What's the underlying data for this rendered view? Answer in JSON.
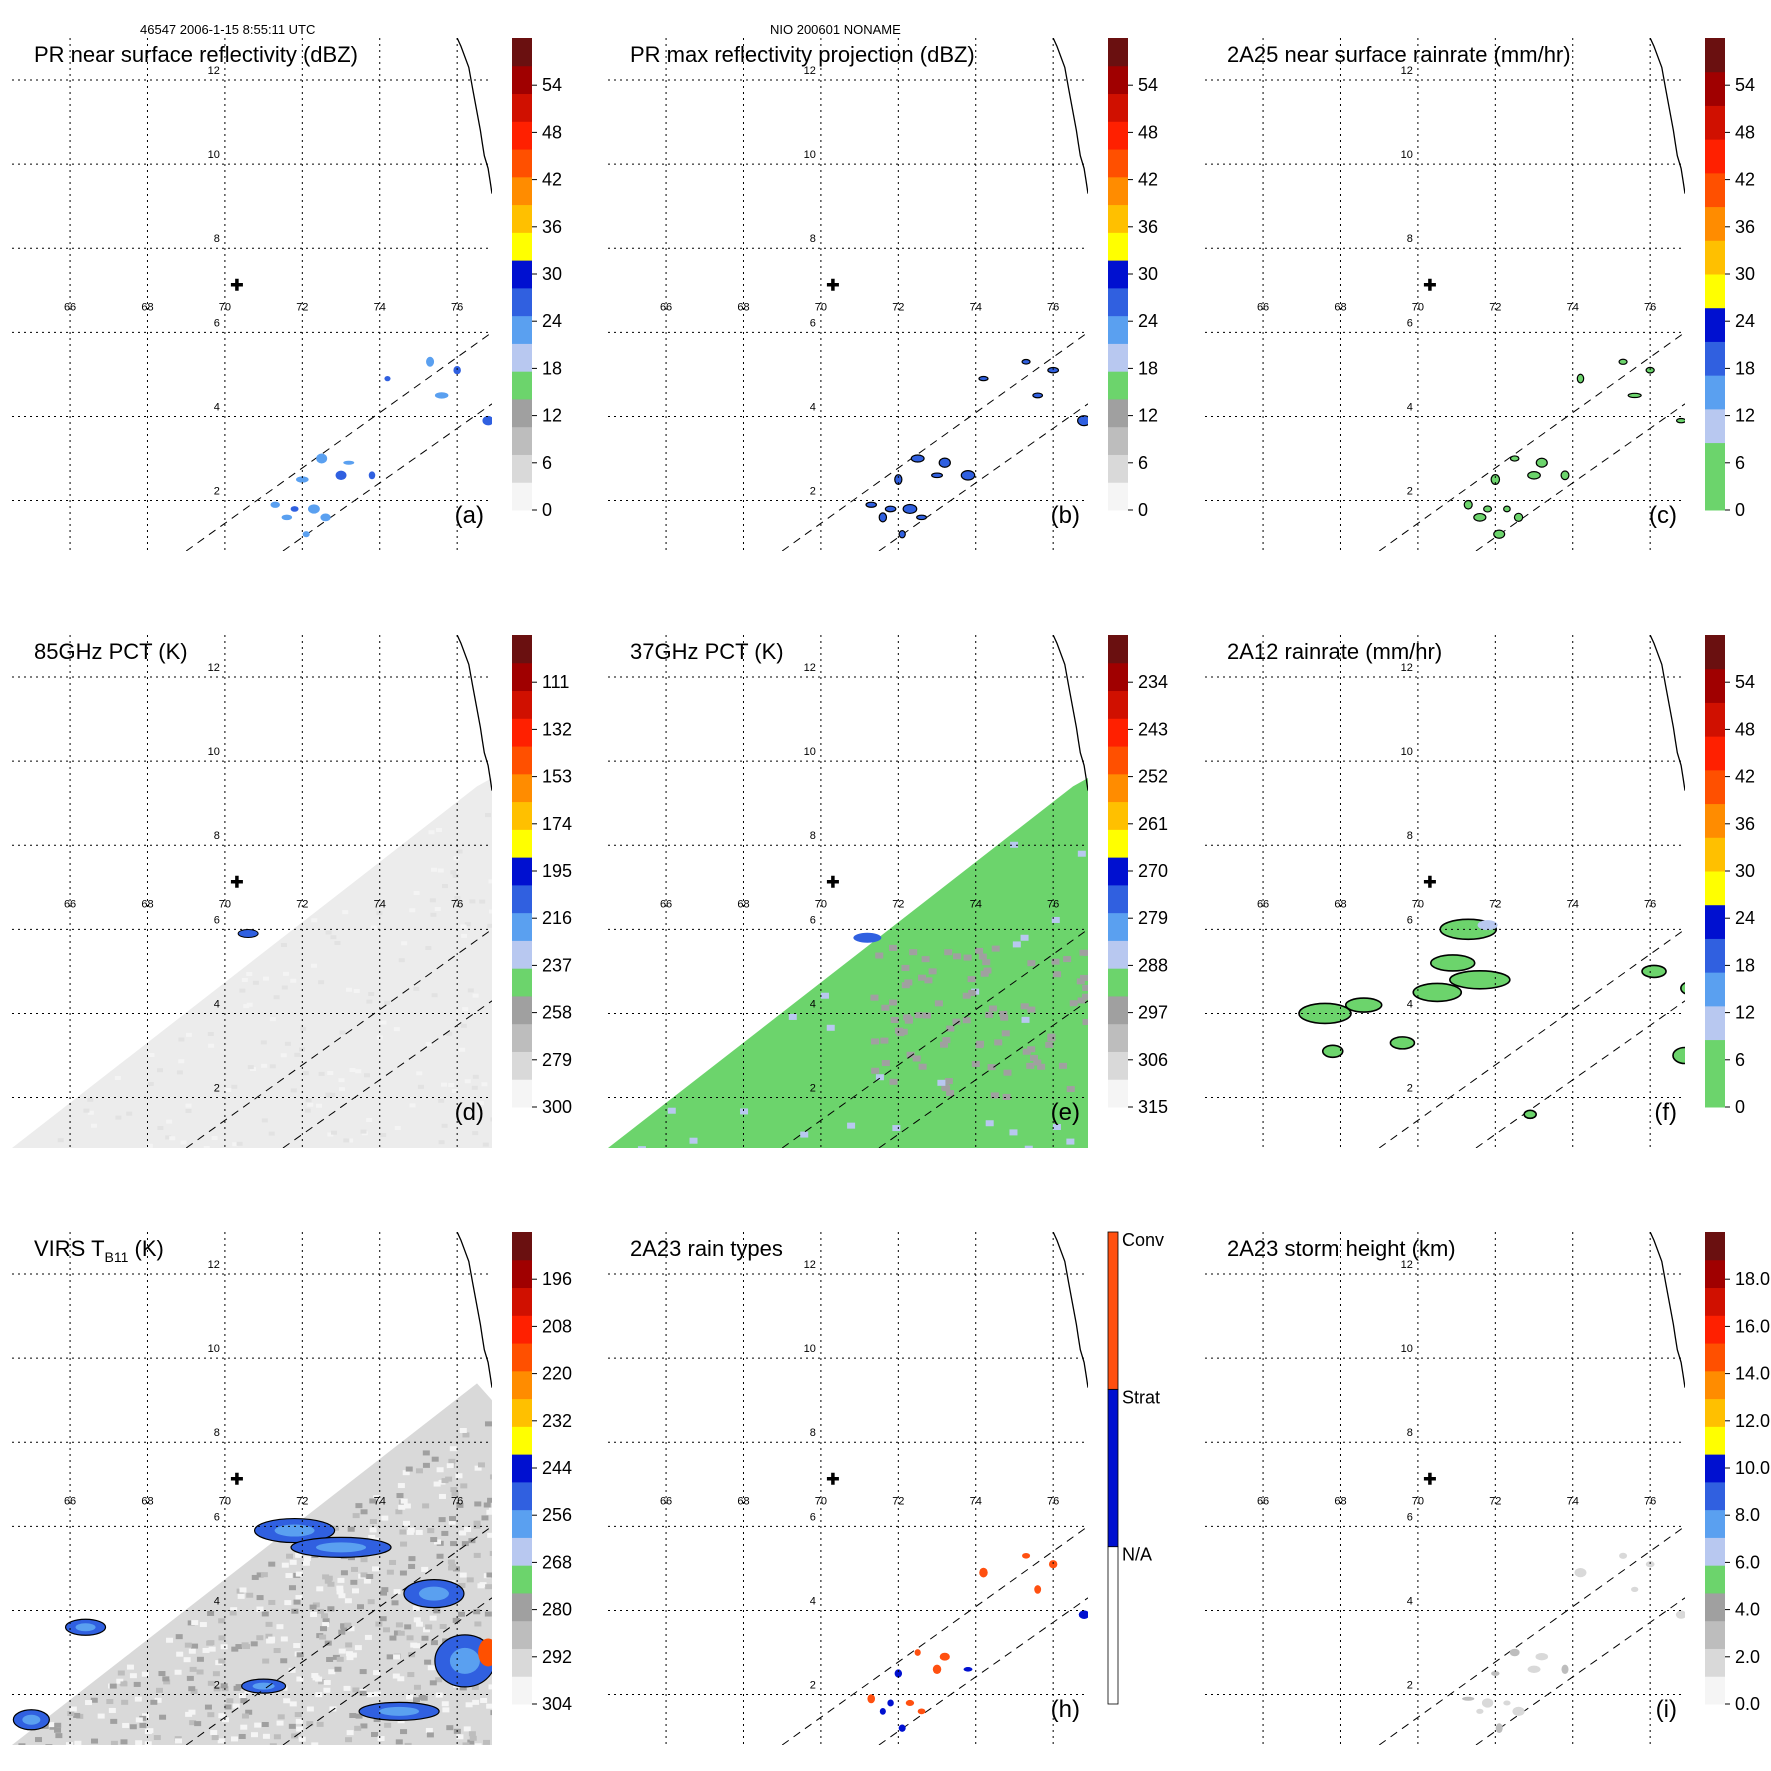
{
  "header": {
    "left": "46547 2006-1-15 8:55:11 UTC",
    "center": "NIO 200601 NONAME"
  },
  "colors": {
    "palette": [
      "#f5f5f5",
      "#d9d9d9",
      "#bdbdbd",
      "#a0a0a0",
      "#6cd46c",
      "#b8c8f0",
      "#5aa0f0",
      "#3060e0",
      "#0010d0",
      "#ffff00",
      "#ffc000",
      "#ff8c00",
      "#ff5000",
      "#ff2000",
      "#d01000",
      "#a00000",
      "#6a1010"
    ],
    "raintype": [
      "#ffffff",
      "#0010d0",
      "#ff5010"
    ],
    "field_green": "#6cd46c",
    "field_grey": "#e8e8e8",
    "land": "#000000"
  },
  "chart_data": [
    {
      "id": "a",
      "type": "heatmap",
      "title": "PR near surface reflectivity (dBZ)",
      "label": "(a)",
      "x_ticks": [
        "66",
        "68",
        "70",
        "72",
        "74",
        "76"
      ],
      "y_ticks": [
        "2",
        "4",
        "6",
        "8",
        "10",
        "12"
      ],
      "xlim": [
        64.5,
        76.9
      ],
      "ylim": [
        0.8,
        13.0
      ],
      "center": [
        70.0,
        6.8
      ],
      "colorbar": {
        "kind": "std",
        "ticks": [
          "0",
          "6",
          "12",
          "18",
          "24",
          "30",
          "36",
          "42",
          "48",
          "54"
        ]
      }
    },
    {
      "id": "b",
      "type": "heatmap",
      "title": "PR max reflectivity projection (dBZ)",
      "label": "(b)",
      "x_ticks": [
        "66",
        "68",
        "70",
        "72",
        "74",
        "76"
      ],
      "y_ticks": [
        "2",
        "4",
        "6",
        "8",
        "10",
        "12"
      ],
      "xlim": [
        64.5,
        76.9
      ],
      "ylim": [
        0.8,
        13.0
      ],
      "center": [
        70.0,
        6.8
      ],
      "colorbar": {
        "kind": "std",
        "ticks": [
          "0",
          "6",
          "12",
          "18",
          "24",
          "30",
          "36",
          "42",
          "48",
          "54"
        ]
      }
    },
    {
      "id": "c",
      "type": "heatmap",
      "title": "2A25 near surface rainrate (mm/hr)",
      "label": "(c)",
      "x_ticks": [
        "66",
        "68",
        "70",
        "72",
        "74",
        "76"
      ],
      "y_ticks": [
        "2",
        "4",
        "6",
        "8",
        "10",
        "12"
      ],
      "xlim": [
        64.5,
        76.9
      ],
      "ylim": [
        0.8,
        13.0
      ],
      "center": [
        70.0,
        6.8
      ],
      "colorbar": {
        "kind": "rain",
        "ticks": [
          "0",
          "6",
          "12",
          "18",
          "24",
          "30",
          "36",
          "42",
          "48",
          "54"
        ]
      }
    },
    {
      "id": "d",
      "type": "heatmap",
      "title": "85GHz PCT (K)",
      "label": "(d)",
      "x_ticks": [
        "66",
        "68",
        "70",
        "72",
        "74",
        "76"
      ],
      "y_ticks": [
        "2",
        "4",
        "6",
        "8",
        "10",
        "12"
      ],
      "xlim": [
        64.5,
        76.9
      ],
      "ylim": [
        0.8,
        13.0
      ],
      "center": [
        70.0,
        6.8
      ],
      "colorbar": {
        "kind": "std",
        "ticks": [
          "300",
          "279",
          "258",
          "237",
          "216",
          "195",
          "174",
          "153",
          "132",
          "111"
        ]
      }
    },
    {
      "id": "e",
      "type": "heatmap",
      "title": "37GHz PCT (K)",
      "label": "(e)",
      "x_ticks": [
        "66",
        "68",
        "70",
        "72",
        "74",
        "76"
      ],
      "y_ticks": [
        "2",
        "4",
        "6",
        "8",
        "10",
        "12"
      ],
      "xlim": [
        64.5,
        76.9
      ],
      "ylim": [
        0.8,
        13.0
      ],
      "center": [
        70.0,
        6.8
      ],
      "colorbar": {
        "kind": "std",
        "ticks": [
          "315",
          "306",
          "297",
          "288",
          "279",
          "270",
          "261",
          "252",
          "243",
          "234"
        ]
      }
    },
    {
      "id": "f",
      "type": "heatmap",
      "title": "2A12 rainrate (mm/hr)",
      "label": "(f)",
      "x_ticks": [
        "66",
        "68",
        "70",
        "72",
        "74",
        "76"
      ],
      "y_ticks": [
        "2",
        "4",
        "6",
        "8",
        "10",
        "12"
      ],
      "xlim": [
        64.5,
        76.9
      ],
      "ylim": [
        0.8,
        13.0
      ],
      "center": [
        70.0,
        6.8
      ],
      "colorbar": {
        "kind": "rain",
        "ticks": [
          "0",
          "6",
          "12",
          "18",
          "24",
          "30",
          "36",
          "42",
          "48",
          "54"
        ]
      }
    },
    {
      "id": "g",
      "type": "heatmap",
      "title": "VIRS T",
      "title_sub": "B11",
      "title_tail": " (K)",
      "label": "",
      "x_ticks": [
        "66",
        "68",
        "70",
        "72",
        "74",
        "76"
      ],
      "y_ticks": [
        "2",
        "4",
        "6",
        "8",
        "10",
        "12"
      ],
      "xlim": [
        64.5,
        76.9
      ],
      "ylim": [
        0.8,
        13.0
      ],
      "center": [
        70.0,
        6.8
      ],
      "colorbar": {
        "kind": "std",
        "ticks": [
          "304",
          "292",
          "280",
          "268",
          "256",
          "244",
          "232",
          "220",
          "208",
          "196"
        ]
      }
    },
    {
      "id": "h",
      "type": "heatmap",
      "title": "2A23 rain types",
      "label": "(h)",
      "x_ticks": [
        "66",
        "68",
        "70",
        "72",
        "74",
        "76"
      ],
      "y_ticks": [
        "2",
        "4",
        "6",
        "8",
        "10",
        "12"
      ],
      "xlim": [
        64.5,
        76.9
      ],
      "ylim": [
        0.8,
        13.0
      ],
      "center": [
        70.0,
        6.8
      ],
      "colorbar": {
        "kind": "raintype",
        "ticks": [
          "N/A",
          "Strat",
          "Conv"
        ]
      }
    },
    {
      "id": "i",
      "type": "heatmap",
      "title": "2A23 storm height (km)",
      "label": "(i)",
      "x_ticks": [
        "66",
        "68",
        "70",
        "72",
        "74",
        "76"
      ],
      "y_ticks": [
        "2",
        "4",
        "6",
        "8",
        "10",
        "12"
      ],
      "xlim": [
        64.5,
        76.9
      ],
      "ylim": [
        0.8,
        13.0
      ],
      "center": [
        70.0,
        6.8
      ],
      "colorbar": {
        "kind": "std",
        "ticks": [
          "0.0",
          "2.0",
          "4.0",
          "6.0",
          "8.0",
          "10.0",
          "12.0",
          "14.0",
          "16.0",
          "18.0"
        ]
      }
    }
  ]
}
